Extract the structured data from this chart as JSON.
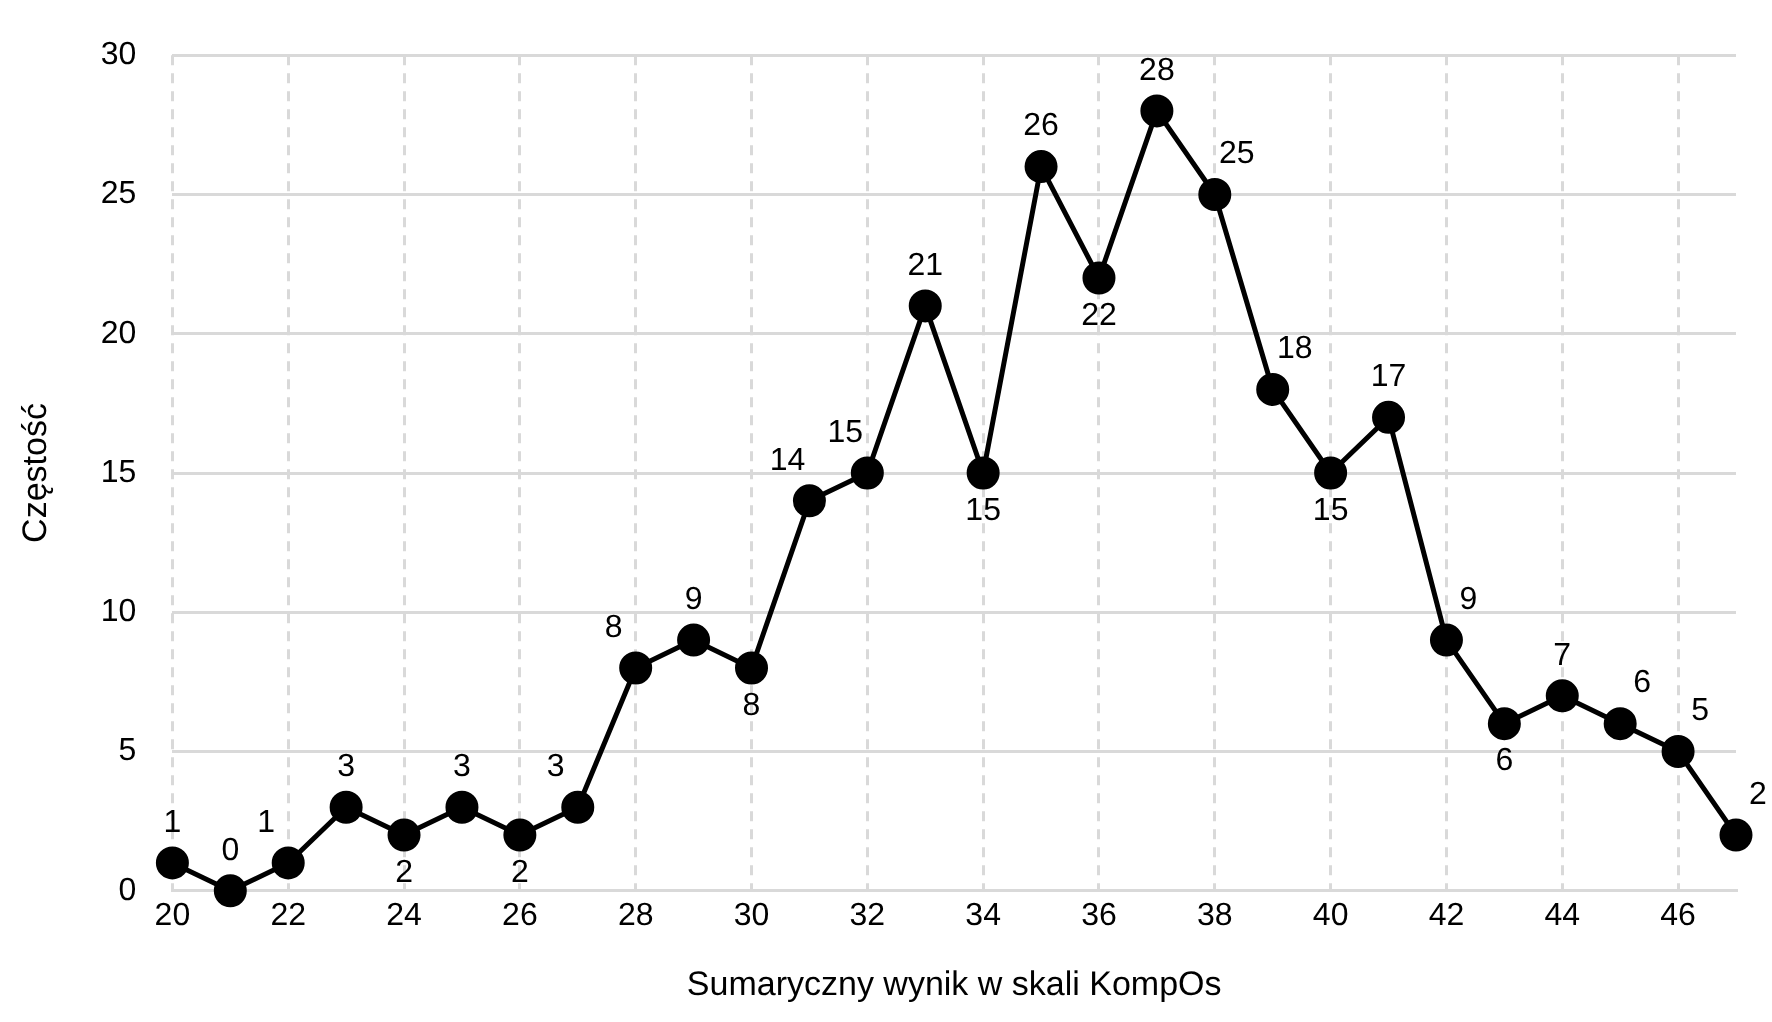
{
  "chart_data": {
    "type": "line",
    "xlabel": "Sumaryczny wynik w skali KompOs",
    "ylabel": "Częstość",
    "x": [
      20,
      21,
      22,
      23,
      24,
      25,
      26,
      27,
      28,
      29,
      30,
      31,
      32,
      33,
      34,
      35,
      36,
      37,
      38,
      39,
      40,
      41,
      42,
      43,
      44,
      45,
      46,
      47
    ],
    "series": [
      {
        "color": "#000000",
        "values": [
          1,
          0,
          1,
          3,
          2,
          3,
          2,
          3,
          8,
          9,
          8,
          14,
          15,
          21,
          15,
          26,
          22,
          28,
          25,
          18,
          15,
          17,
          9,
          6,
          7,
          6,
          5,
          2
        ]
      }
    ],
    "xlim": [
      20,
      47
    ],
    "xticks": [
      20,
      22,
      24,
      26,
      28,
      30,
      32,
      34,
      36,
      38,
      40,
      42,
      44,
      46
    ],
    "ylim": [
      0,
      30
    ],
    "yticks": [
      0,
      5,
      10,
      15,
      20,
      25,
      30
    ],
    "grid": true,
    "legend": false,
    "marker": "circle",
    "line_style": "solid",
    "data_labels": true
  }
}
